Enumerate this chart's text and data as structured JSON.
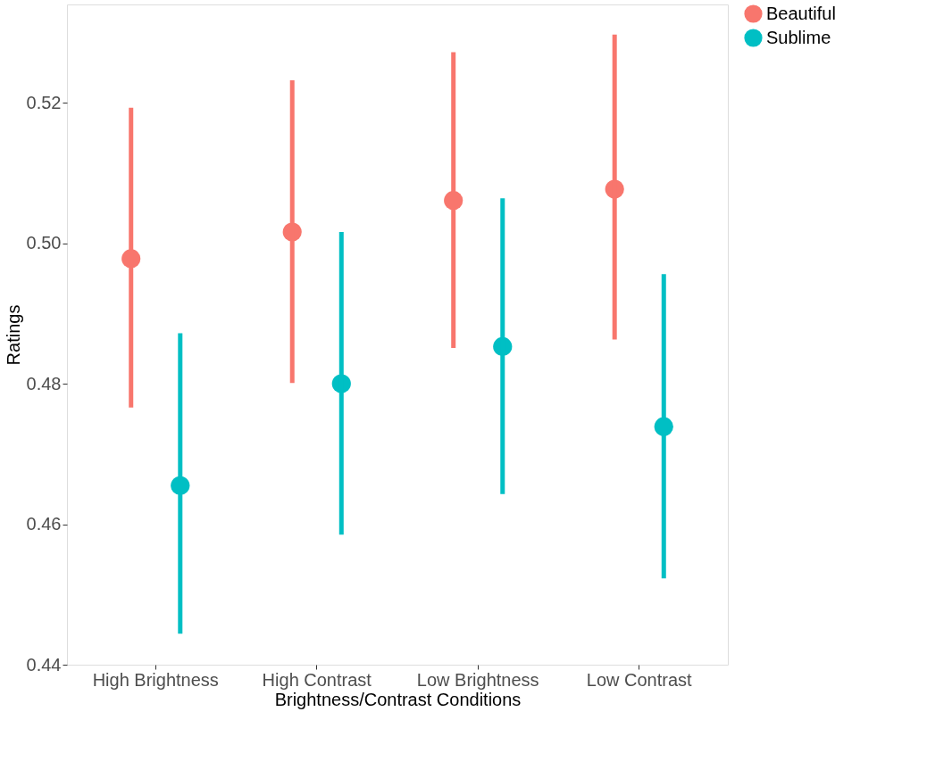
{
  "chart_data": {
    "type": "scatter",
    "xlabel": "Brightness/Contrast Conditions",
    "ylabel": "Ratings",
    "categories": [
      "High Brightness",
      "High Contrast",
      "Low Brightness",
      "Low Contrast"
    ],
    "series": [
      {
        "name": "Beautiful",
        "color": "#f8766d",
        "values": [
          0.4978,
          0.5016,
          0.5061,
          0.5077
        ],
        "errors": [
          [
            0.4766,
            0.5193
          ],
          [
            0.4801,
            0.5232
          ],
          [
            0.4851,
            0.5272
          ],
          [
            0.4863,
            0.5297
          ]
        ]
      },
      {
        "name": "Sublime",
        "color": "#00bfc4",
        "values": [
          0.4655,
          0.48,
          0.4853,
          0.4739
        ],
        "errors": [
          [
            0.4444,
            0.4872
          ],
          [
            0.4585,
            0.5016
          ],
          [
            0.4643,
            0.5064
          ],
          [
            0.4523,
            0.4956
          ]
        ]
      }
    ],
    "ylim": [
      0.44,
      0.534
    ],
    "yticks": [
      0.44,
      0.46,
      0.48,
      {
        "value": 0.5,
        "label": "0.50"
      },
      0.52
    ],
    "grid": false,
    "legend": "right",
    "marker": "circle"
  }
}
